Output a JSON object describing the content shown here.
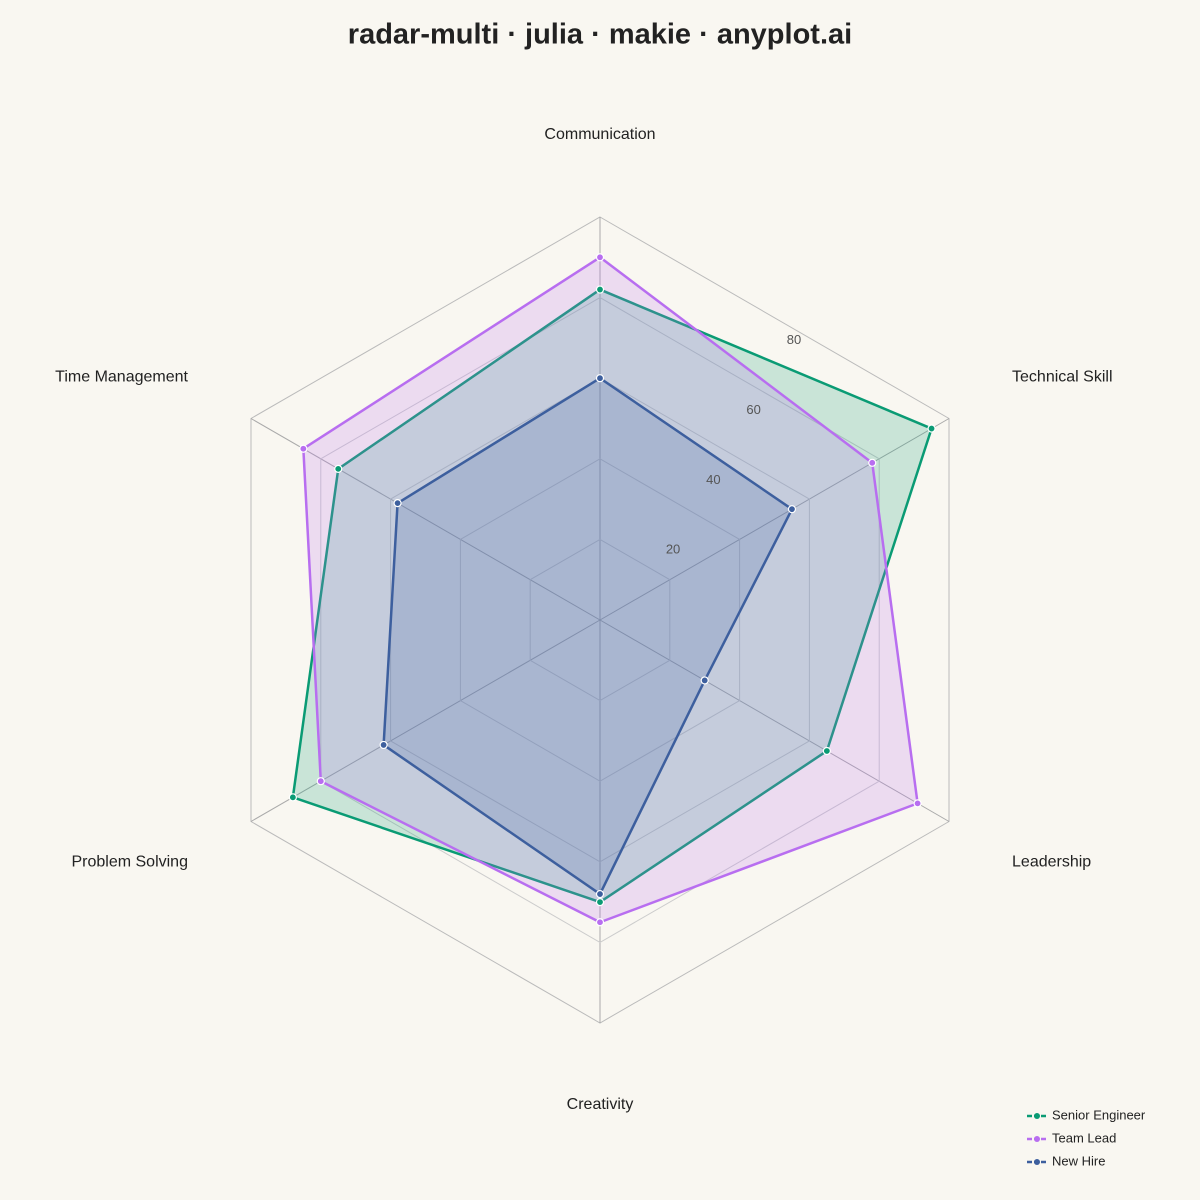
{
  "chart_data": {
    "type": "radar",
    "title": "radar-multi · julia · makie · anyplot.ai",
    "categories": [
      "Communication",
      "Technical Skill",
      "Leadership",
      "Creativity",
      "Problem Solving",
      "Time Management"
    ],
    "series": [
      {
        "name": "Senior Engineer",
        "color": "#0a9b74",
        "values": [
          82,
          95,
          65,
          70,
          88,
          75
        ]
      },
      {
        "name": "Team Lead",
        "color": "#b86ef0",
        "values": [
          90,
          78,
          91,
          75,
          80,
          85
        ]
      },
      {
        "name": "New Hire",
        "color": "#3d5f9e",
        "values": [
          60,
          55,
          30,
          68,
          62,
          58
        ]
      }
    ],
    "ylim": [
      0,
      100
    ],
    "yticks": [
      20,
      40,
      60,
      80
    ],
    "grid": true,
    "legend": "lower right"
  }
}
